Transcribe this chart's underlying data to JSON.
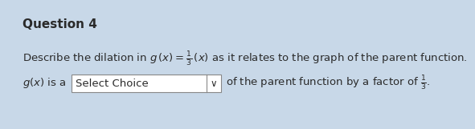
{
  "background_color": "#c8d8e8",
  "title": "Question 4",
  "title_fontsize": 11,
  "title_fontweight": "bold",
  "text_fontsize": 9.5,
  "text_color": "#2a2a2a",
  "line1": "Describe the dilation in $g\\,(x) = \\frac{1}{3}\\,(x)$ as it relates to the graph of the parent function.",
  "line2_pre": "g(x) is a",
  "line2_dropdown": "Select Choice",
  "line2_post": "of the parent function by a factor of $\\frac{1}{3}$.",
  "box_facecolor": "#ffffff",
  "box_edgecolor": "#888888",
  "dropdown_arrow": "∨"
}
